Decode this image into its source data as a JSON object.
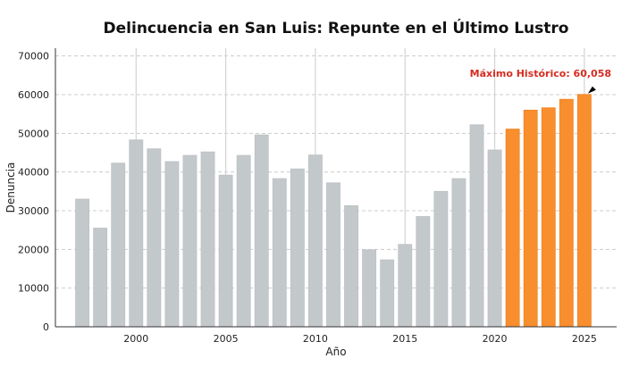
{
  "chart_data": {
    "type": "bar",
    "title": "Delincuencia en San Luis: Repunte en el Último Lustro",
    "xlabel": "Año",
    "ylabel": "Denuncia",
    "x": [
      1997,
      1998,
      1999,
      2000,
      2001,
      2002,
      2003,
      2004,
      2005,
      2006,
      2007,
      2008,
      2009,
      2010,
      2011,
      2012,
      2013,
      2014,
      2015,
      2016,
      2017,
      2018,
      2019,
      2020,
      2021,
      2022,
      2023,
      2024,
      2025
    ],
    "values": [
      33000,
      25500,
      42300,
      48300,
      46000,
      42700,
      44300,
      45200,
      39200,
      44300,
      49600,
      38300,
      40800,
      44400,
      37200,
      31300,
      19900,
      17300,
      21300,
      28500,
      35000,
      38300,
      52200,
      45700,
      51100,
      56000,
      56600,
      58800,
      60058
    ],
    "highlight_from": 2021,
    "xlim": [
      1995.5,
      2026.8
    ],
    "ylim": [
      0,
      72000
    ],
    "xticks": [
      2000,
      2005,
      2010,
      2015,
      2020,
      2025
    ],
    "yticks": [
      0,
      10000,
      20000,
      30000,
      40000,
      50000,
      60000,
      70000
    ],
    "grid": {
      "x": "solid",
      "y": "dashed"
    },
    "annotation": {
      "text": "Máximo Histórico: 60,058",
      "x": 2025,
      "y": 60058
    },
    "colors": {
      "base": "#c3c8cb",
      "highlight": "#f98e2e",
      "annotation": "#d62c20",
      "arrow": "#000000"
    }
  }
}
